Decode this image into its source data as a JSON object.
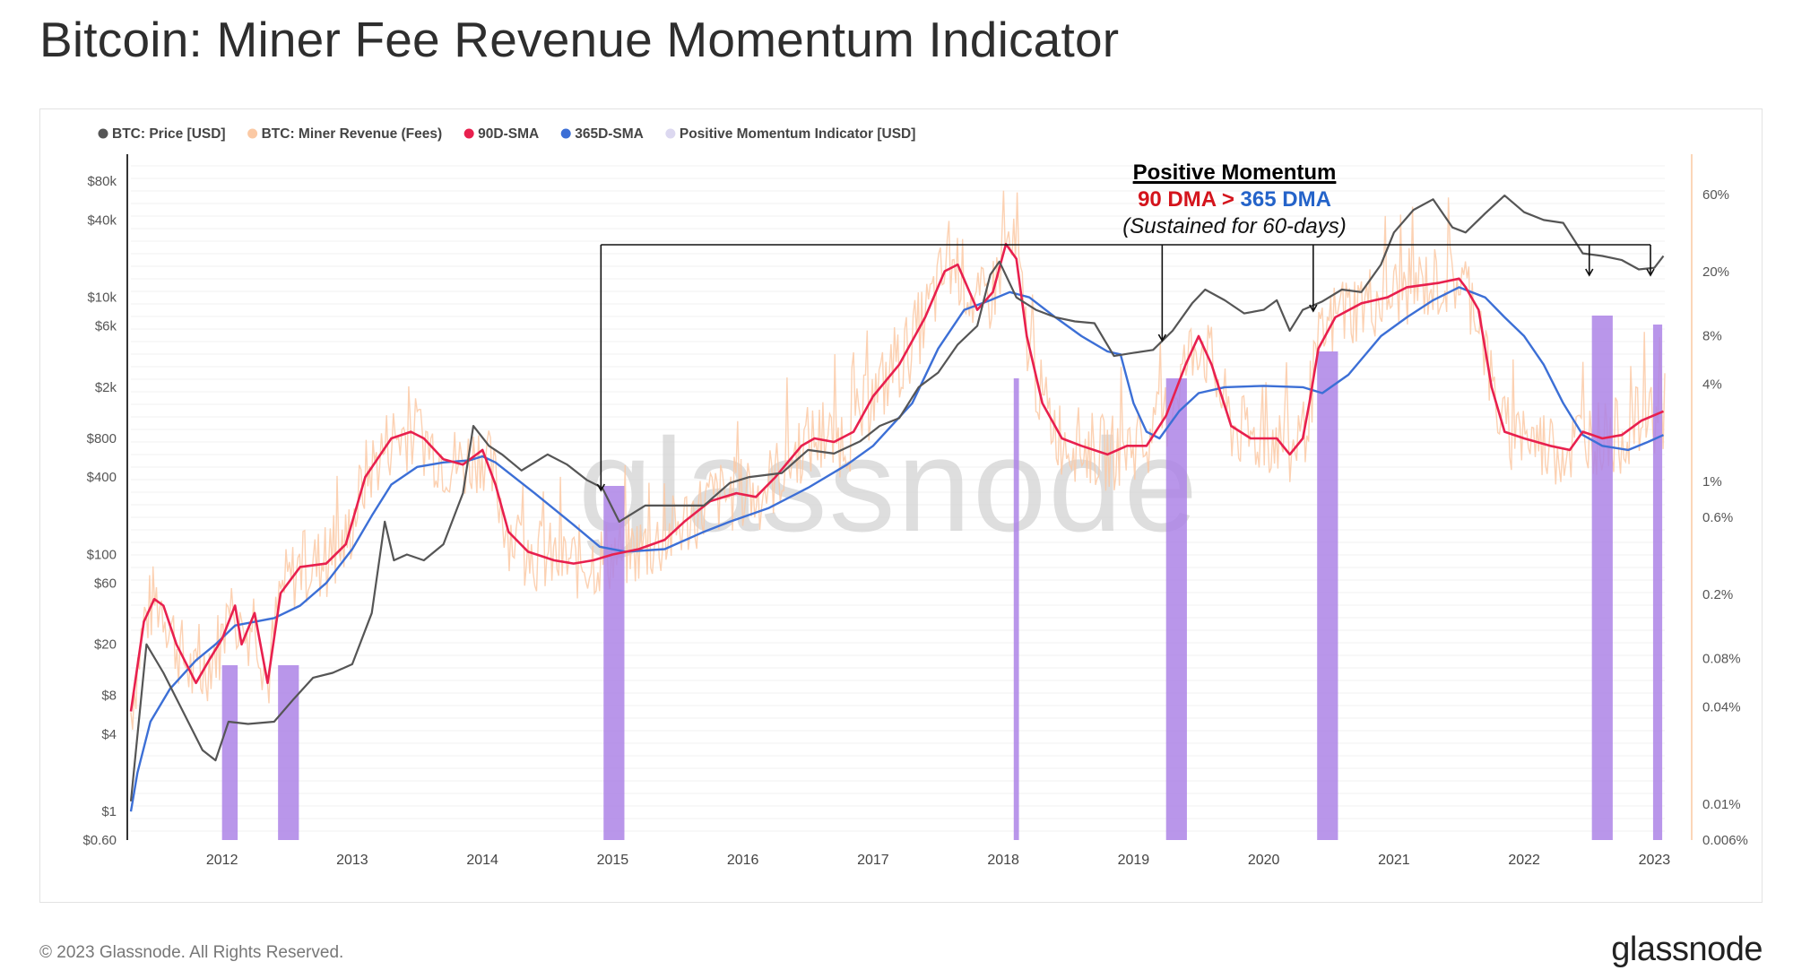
{
  "header": {
    "title": "Bitcoin: Miner Fee Revenue Momentum Indicator"
  },
  "footer": {
    "copyright": "© 2023 Glassnode. All Rights Reserved.",
    "brand": "glassnode"
  },
  "colors": {
    "price": "#555555",
    "fees": "#fbc9a4",
    "sma90": "#e8204e",
    "sma365": "#3c6fd6",
    "momentum": "#ad84e6",
    "momentum_legend": "#dcd8f0"
  },
  "chart_data": {
    "type": "line",
    "title": "Bitcoin: Miner Fee Revenue Momentum Indicator",
    "watermark": "glassnode",
    "legend_placement": "top-left",
    "legend": [
      {
        "key": "price",
        "label": "BTC: Price [USD]"
      },
      {
        "key": "fees",
        "label": "BTC: Miner Revenue (Fees)"
      },
      {
        "key": "sma90",
        "label": "90D-SMA"
      },
      {
        "key": "sma365",
        "label": "365D-SMA"
      },
      {
        "key": "momentum",
        "label": "Positive Momentum Indicator [USD]"
      }
    ],
    "x_axis": {
      "ticks": [
        "2012",
        "2013",
        "2014",
        "2015",
        "2016",
        "2017",
        "2018",
        "2019",
        "2020",
        "2021",
        "2022",
        "2023"
      ],
      "range": [
        2011.3,
        2023.08
      ]
    },
    "y_left": {
      "scale": "log",
      "range": [
        0.6,
        120000
      ],
      "ticks": [
        {
          "v": 80000,
          "label": "$80k"
        },
        {
          "v": 40000,
          "label": "$40k"
        },
        {
          "v": 10000,
          "label": "$10k"
        },
        {
          "v": 6000,
          "label": "$6k"
        },
        {
          "v": 2000,
          "label": "$2k"
        },
        {
          "v": 800,
          "label": "$800"
        },
        {
          "v": 400,
          "label": "$400"
        },
        {
          "v": 100,
          "label": "$100"
        },
        {
          "v": 60,
          "label": "$60"
        },
        {
          "v": 20,
          "label": "$20"
        },
        {
          "v": 8,
          "label": "$8"
        },
        {
          "v": 4,
          "label": "$4"
        },
        {
          "v": 1,
          "label": "$1"
        },
        {
          "v": 0.6,
          "label": "$0.60"
        }
      ]
    },
    "y_right": {
      "scale": "log",
      "range": [
        0.006,
        100
      ],
      "ticks": [
        {
          "v": 60,
          "label": "60%"
        },
        {
          "v": 20,
          "label": "20%"
        },
        {
          "v": 8,
          "label": "8%"
        },
        {
          "v": 4,
          "label": "4%"
        },
        {
          "v": 1,
          "label": "1%"
        },
        {
          "v": 0.6,
          "label": "0.6%"
        },
        {
          "v": 0.2,
          "label": "0.2%"
        },
        {
          "v": 0.08,
          "label": "0.08%"
        },
        {
          "v": 0.04,
          "label": "0.04%"
        },
        {
          "v": 0.01,
          "label": "0.01%"
        },
        {
          "v": 0.006,
          "label": "0.006%"
        }
      ]
    },
    "series": [
      {
        "key": "price",
        "name": "BTC: Price [USD]",
        "points": [
          [
            2011.3,
            1.2
          ],
          [
            2011.42,
            20
          ],
          [
            2011.55,
            12
          ],
          [
            2011.7,
            6
          ],
          [
            2011.85,
            3
          ],
          [
            2011.95,
            2.5
          ],
          [
            2012.05,
            5
          ],
          [
            2012.2,
            4.8
          ],
          [
            2012.4,
            5
          ],
          [
            2012.55,
            7.5
          ],
          [
            2012.7,
            11
          ],
          [
            2012.85,
            12
          ],
          [
            2013.0,
            14
          ],
          [
            2013.15,
            35
          ],
          [
            2013.25,
            180
          ],
          [
            2013.32,
            90
          ],
          [
            2013.42,
            100
          ],
          [
            2013.55,
            90
          ],
          [
            2013.7,
            120
          ],
          [
            2013.85,
            300
          ],
          [
            2013.93,
            1000
          ],
          [
            2014.05,
            700
          ],
          [
            2014.15,
            600
          ],
          [
            2014.3,
            450
          ],
          [
            2014.5,
            600
          ],
          [
            2014.65,
            500
          ],
          [
            2014.8,
            380
          ],
          [
            2014.92,
            330
          ],
          [
            2015.05,
            180
          ],
          [
            2015.25,
            240
          ],
          [
            2015.5,
            240
          ],
          [
            2015.7,
            240
          ],
          [
            2015.9,
            360
          ],
          [
            2016.05,
            400
          ],
          [
            2016.3,
            430
          ],
          [
            2016.5,
            650
          ],
          [
            2016.7,
            610
          ],
          [
            2016.9,
            760
          ],
          [
            2017.05,
            1000
          ],
          [
            2017.2,
            1150
          ],
          [
            2017.35,
            2000
          ],
          [
            2017.5,
            2600
          ],
          [
            2017.65,
            4300
          ],
          [
            2017.8,
            6000
          ],
          [
            2017.9,
            15000
          ],
          [
            2017.97,
            19000
          ],
          [
            2018.1,
            10000
          ],
          [
            2018.25,
            8000
          ],
          [
            2018.4,
            7000
          ],
          [
            2018.55,
            6500
          ],
          [
            2018.7,
            6300
          ],
          [
            2018.85,
            3500
          ],
          [
            2019.0,
            3700
          ],
          [
            2019.15,
            3900
          ],
          [
            2019.3,
            5500
          ],
          [
            2019.45,
            9000
          ],
          [
            2019.55,
            11500
          ],
          [
            2019.7,
            9500
          ],
          [
            2019.85,
            7500
          ],
          [
            2020.0,
            8000
          ],
          [
            2020.1,
            9500
          ],
          [
            2020.2,
            5500
          ],
          [
            2020.3,
            8000
          ],
          [
            2020.45,
            9300
          ],
          [
            2020.6,
            11500
          ],
          [
            2020.75,
            11000
          ],
          [
            2020.9,
            18000
          ],
          [
            2021.0,
            32000
          ],
          [
            2021.15,
            48000
          ],
          [
            2021.3,
            58000
          ],
          [
            2021.45,
            35000
          ],
          [
            2021.55,
            32000
          ],
          [
            2021.7,
            45000
          ],
          [
            2021.85,
            62000
          ],
          [
            2022.0,
            46000
          ],
          [
            2022.15,
            40000
          ],
          [
            2022.3,
            38000
          ],
          [
            2022.45,
            22000
          ],
          [
            2022.6,
            21000
          ],
          [
            2022.75,
            19500
          ],
          [
            2022.88,
            16500
          ],
          [
            2023.0,
            17000
          ],
          [
            2023.07,
            21000
          ]
        ]
      },
      {
        "key": "sma90",
        "name": "90D-SMA",
        "points": [
          [
            2011.3,
            6
          ],
          [
            2011.4,
            30
          ],
          [
            2011.48,
            45
          ],
          [
            2011.55,
            40
          ],
          [
            2011.65,
            20
          ],
          [
            2011.8,
            10
          ],
          [
            2011.9,
            15
          ],
          [
            2012.0,
            22
          ],
          [
            2012.1,
            40
          ],
          [
            2012.15,
            20
          ],
          [
            2012.25,
            35
          ],
          [
            2012.35,
            10
          ],
          [
            2012.45,
            50
          ],
          [
            2012.6,
            80
          ],
          [
            2012.8,
            85
          ],
          [
            2012.95,
            120
          ],
          [
            2013.1,
            400
          ],
          [
            2013.3,
            800
          ],
          [
            2013.45,
            900
          ],
          [
            2013.55,
            800
          ],
          [
            2013.7,
            550
          ],
          [
            2013.85,
            500
          ],
          [
            2014.0,
            650
          ],
          [
            2014.1,
            350
          ],
          [
            2014.2,
            150
          ],
          [
            2014.35,
            105
          ],
          [
            2014.55,
            90
          ],
          [
            2014.7,
            85
          ],
          [
            2014.85,
            90
          ],
          [
            2015.0,
            100
          ],
          [
            2015.2,
            110
          ],
          [
            2015.4,
            130
          ],
          [
            2015.55,
            180
          ],
          [
            2015.75,
            260
          ],
          [
            2015.95,
            300
          ],
          [
            2016.1,
            280
          ],
          [
            2016.25,
            400
          ],
          [
            2016.45,
            700
          ],
          [
            2016.55,
            800
          ],
          [
            2016.7,
            750
          ],
          [
            2016.85,
            900
          ],
          [
            2017.0,
            1700
          ],
          [
            2017.2,
            3000
          ],
          [
            2017.4,
            7000
          ],
          [
            2017.55,
            16000
          ],
          [
            2017.65,
            18000
          ],
          [
            2017.8,
            8000
          ],
          [
            2017.92,
            11000
          ],
          [
            2018.02,
            26000
          ],
          [
            2018.1,
            20000
          ],
          [
            2018.18,
            5000
          ],
          [
            2018.3,
            1500
          ],
          [
            2018.45,
            800
          ],
          [
            2018.6,
            700
          ],
          [
            2018.8,
            600
          ],
          [
            2018.95,
            700
          ],
          [
            2019.1,
            700
          ],
          [
            2019.25,
            1200
          ],
          [
            2019.4,
            3000
          ],
          [
            2019.5,
            5000
          ],
          [
            2019.6,
            3000
          ],
          [
            2019.75,
            1000
          ],
          [
            2019.9,
            800
          ],
          [
            2020.1,
            800
          ],
          [
            2020.2,
            600
          ],
          [
            2020.3,
            800
          ],
          [
            2020.35,
            1500
          ],
          [
            2020.42,
            4000
          ],
          [
            2020.55,
            7000
          ],
          [
            2020.75,
            9000
          ],
          [
            2020.95,
            10000
          ],
          [
            2021.1,
            12000
          ],
          [
            2021.35,
            13000
          ],
          [
            2021.5,
            14000
          ],
          [
            2021.55,
            12000
          ],
          [
            2021.65,
            8000
          ],
          [
            2021.75,
            2000
          ],
          [
            2021.85,
            900
          ],
          [
            2022.0,
            800
          ],
          [
            2022.2,
            700
          ],
          [
            2022.35,
            650
          ],
          [
            2022.45,
            900
          ],
          [
            2022.6,
            800
          ],
          [
            2022.75,
            850
          ],
          [
            2022.9,
            1100
          ],
          [
            2023.07,
            1300
          ]
        ]
      },
      {
        "key": "sma365",
        "name": "365D-SMA",
        "points": [
          [
            2011.3,
            1
          ],
          [
            2011.35,
            2
          ],
          [
            2011.45,
            5
          ],
          [
            2011.6,
            9
          ],
          [
            2011.8,
            15
          ],
          [
            2011.95,
            20
          ],
          [
            2012.1,
            28
          ],
          [
            2012.4,
            32
          ],
          [
            2012.6,
            40
          ],
          [
            2012.8,
            60
          ],
          [
            2013.0,
            110
          ],
          [
            2013.15,
            200
          ],
          [
            2013.3,
            350
          ],
          [
            2013.5,
            480
          ],
          [
            2013.7,
            520
          ],
          [
            2013.9,
            540
          ],
          [
            2014.0,
            580
          ],
          [
            2014.1,
            520
          ],
          [
            2014.4,
            300
          ],
          [
            2014.7,
            170
          ],
          [
            2014.9,
            115
          ],
          [
            2015.1,
            105
          ],
          [
            2015.4,
            110
          ],
          [
            2015.7,
            150
          ],
          [
            2015.9,
            180
          ],
          [
            2016.2,
            230
          ],
          [
            2016.5,
            330
          ],
          [
            2016.8,
            500
          ],
          [
            2017.0,
            700
          ],
          [
            2017.3,
            1500
          ],
          [
            2017.5,
            4000
          ],
          [
            2017.7,
            8000
          ],
          [
            2017.9,
            9500
          ],
          [
            2018.05,
            11000
          ],
          [
            2018.2,
            10000
          ],
          [
            2018.4,
            7000
          ],
          [
            2018.6,
            5000
          ],
          [
            2018.8,
            3800
          ],
          [
            2018.9,
            3600
          ],
          [
            2019.0,
            1500
          ],
          [
            2019.1,
            900
          ],
          [
            2019.2,
            800
          ],
          [
            2019.35,
            1300
          ],
          [
            2019.5,
            1800
          ],
          [
            2019.7,
            2000
          ],
          [
            2020.0,
            2050
          ],
          [
            2020.3,
            2000
          ],
          [
            2020.45,
            1800
          ],
          [
            2020.65,
            2500
          ],
          [
            2020.9,
            5000
          ],
          [
            2021.1,
            7000
          ],
          [
            2021.3,
            9500
          ],
          [
            2021.5,
            12000
          ],
          [
            2021.7,
            10000
          ],
          [
            2021.85,
            7000
          ],
          [
            2022.0,
            5000
          ],
          [
            2022.15,
            3000
          ],
          [
            2022.3,
            1500
          ],
          [
            2022.45,
            850
          ],
          [
            2022.6,
            700
          ],
          [
            2022.8,
            650
          ],
          [
            2022.95,
            750
          ],
          [
            2023.07,
            850
          ]
        ]
      },
      {
        "key": "momentum",
        "name": "Positive Momentum Indicator [USD]",
        "bands": [
          [
            2012.0,
            2012.12
          ],
          [
            2012.43,
            2012.59
          ],
          [
            2014.93,
            2015.09
          ],
          [
            2018.08,
            2018.12
          ],
          [
            2019.25,
            2019.41
          ],
          [
            2020.41,
            2020.57
          ],
          [
            2022.52,
            2022.68
          ],
          [
            2022.99,
            2023.06
          ]
        ]
      }
    ],
    "annotation": {
      "title": "Positive Momentum",
      "condition_left": "90 DMA",
      "condition_op": ">",
      "condition_right": "365 DMA",
      "subtitle": "(Sustained for 60-days)",
      "arrow_targets": [
        2014.91,
        2019.22,
        2020.38,
        2022.5,
        2022.97
      ]
    }
  }
}
